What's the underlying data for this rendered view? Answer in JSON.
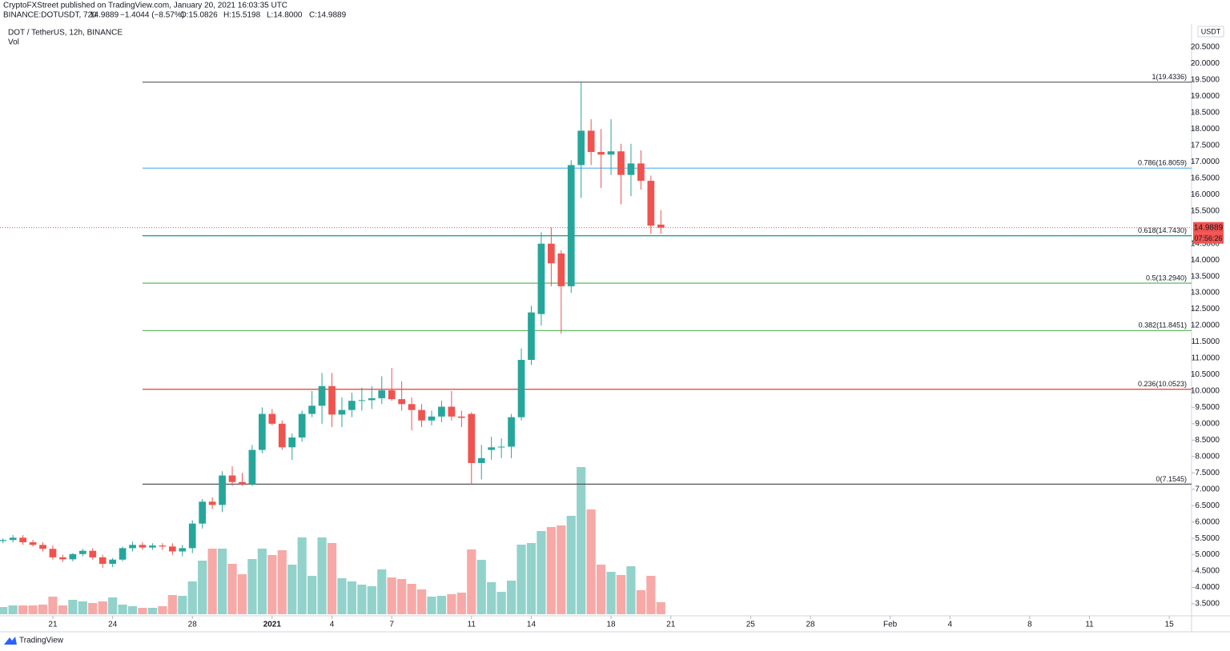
{
  "header": {
    "publisher": "CryptoFXStreet published on TradingView.com, January 20, 2021 16:03:35 UTC",
    "symbol": "BINANCE:DOTUSDT, 720",
    "last": "14.9889",
    "change": "−1.4044 (−8.57%)",
    "open": "O:15.0826",
    "high": "H:15.5198",
    "low": "L:14.8000",
    "close": "C:14.9889"
  },
  "footer": {
    "brand": "TradingView"
  },
  "chart_data": {
    "type": "candlestick",
    "title": "DOT / TetherUS, 12h, BINANCE",
    "volume_label": "Vol",
    "unit": "USDT",
    "up_color": "#26a69a",
    "down_color": "#ef5350",
    "volume_up_color": "#92d2cb",
    "volume_down_color": "#f7a9a7",
    "open": [
      5.42,
      5.45,
      5.52,
      5.38,
      5.3,
      5.18,
      4.92,
      4.86,
      5.02,
      5.12,
      4.92,
      4.72,
      4.85,
      5.2,
      5.3,
      5.22,
      5.28,
      5.25,
      5.1,
      5.2,
      5.95,
      6.62,
      6.52,
      7.42,
      7.22,
      7.15,
      8.2,
      9.3,
      9.0,
      8.28,
      8.58,
      9.3,
      9.55,
      10.15,
      9.28,
      9.42,
      9.7,
      9.72,
      9.78,
      10.02,
      9.75,
      9.6,
      9.42,
      9.1,
      9.22,
      9.52,
      9.22,
      9.3,
      7.8,
      8.2,
      8.28,
      8.3,
      9.2,
      10.95,
      12.35,
      14.5,
      14.2,
      13.2,
      16.9,
      17.95,
      17.3,
      17.22,
      17.32,
      16.6,
      16.95,
      16.42,
      15.0826
    ],
    "high": [
      5.5,
      5.6,
      5.6,
      5.45,
      5.38,
      5.28,
      5.0,
      5.05,
      5.18,
      5.2,
      5.0,
      4.9,
      5.25,
      5.4,
      5.38,
      5.35,
      5.35,
      5.35,
      5.3,
      6.05,
      6.7,
      6.75,
      7.55,
      7.7,
      7.5,
      8.35,
      9.5,
      9.45,
      9.1,
      8.7,
      9.4,
      10.0,
      10.55,
      10.55,
      9.8,
      9.95,
      10.1,
      10.15,
      10.45,
      10.7,
      10.3,
      9.8,
      9.6,
      9.4,
      9.7,
      10.0,
      9.4,
      9.35,
      8.35,
      8.6,
      8.55,
      9.3,
      11.3,
      12.6,
      14.85,
      15.0,
      14.3,
      17.05,
      19.4336,
      18.3,
      18.0,
      18.3,
      17.55,
      17.55,
      17.35,
      16.58,
      15.5198
    ],
    "low": [
      5.35,
      5.38,
      5.3,
      5.25,
      5.1,
      4.85,
      4.78,
      4.8,
      4.95,
      4.85,
      4.6,
      4.62,
      4.8,
      5.1,
      5.15,
      5.15,
      5.15,
      5.0,
      4.95,
      5.05,
      5.8,
      6.4,
      6.3,
      7.1,
      7.1,
      7.1,
      8.1,
      8.95,
      8.2,
      7.9,
      8.45,
      9.2,
      9.0,
      8.9,
      8.9,
      9.2,
      9.4,
      9.45,
      9.6,
      9.7,
      9.4,
      8.8,
      8.9,
      8.95,
      9.05,
      9.1,
      8.9,
      7.15,
      7.3,
      7.9,
      7.95,
      7.95,
      9.1,
      10.8,
      12.0,
      13.2,
      11.75,
      13.0,
      15.9,
      16.9,
      16.2,
      16.6,
      15.7,
      15.95,
      16.15,
      14.8,
      14.8
    ],
    "close": [
      5.45,
      5.52,
      5.38,
      5.3,
      5.18,
      4.92,
      4.86,
      5.02,
      5.12,
      4.92,
      4.72,
      4.85,
      5.2,
      5.3,
      5.22,
      5.28,
      5.25,
      5.1,
      5.2,
      5.95,
      6.62,
      6.52,
      7.42,
      7.22,
      7.15,
      8.2,
      9.3,
      9.0,
      8.28,
      8.58,
      9.3,
      9.55,
      10.15,
      9.28,
      9.42,
      9.7,
      9.72,
      9.78,
      10.02,
      9.75,
      9.6,
      9.42,
      9.1,
      9.22,
      9.52,
      9.22,
      9.18,
      7.8,
      7.95,
      8.28,
      8.3,
      9.2,
      10.95,
      12.4,
      14.5,
      13.9,
      13.2,
      16.9,
      17.95,
      17.3,
      17.22,
      17.32,
      16.6,
      16.95,
      16.42,
      15.05,
      14.9889
    ],
    "volume": [
      9,
      11,
      11,
      11,
      12,
      22,
      11,
      18,
      16,
      14,
      16,
      21,
      12,
      10,
      8,
      8,
      10,
      24,
      23,
      41,
      67,
      82,
      82,
      63,
      50,
      69,
      82,
      74,
      80,
      62,
      96,
      48,
      96,
      89,
      45,
      41,
      37,
      35,
      56,
      46,
      44,
      38,
      31,
      22,
      23,
      25,
      27,
      81,
      68,
      40,
      28,
      42,
      87,
      89,
      104,
      109,
      111,
      123,
      184,
      131,
      62,
      53,
      49,
      60,
      30,
      48,
      15
    ],
    "ylim": [
      3.134,
      21.209
    ],
    "yticks": [
      {
        "value": 3.5,
        "label": "3.5000"
      },
      {
        "value": 4,
        "label": "4.0000"
      },
      {
        "value": 4.5,
        "label": "4.5000"
      },
      {
        "value": 5,
        "label": "5.0000"
      },
      {
        "value": 5.5,
        "label": "5.5000"
      },
      {
        "value": 6,
        "label": "6.0000"
      },
      {
        "value": 6.5,
        "label": "6.5000"
      },
      {
        "value": 7,
        "label": "7.0000"
      },
      {
        "value": 7.5,
        "label": "7.5000"
      },
      {
        "value": 8,
        "label": "8.0000"
      },
      {
        "value": 8.5,
        "label": "8.5000"
      },
      {
        "value": 9,
        "label": "9.0000"
      },
      {
        "value": 9.5,
        "label": "9.5000"
      },
      {
        "value": 10,
        "label": "10.0000"
      },
      {
        "value": 10.5,
        "label": "10.5000"
      },
      {
        "value": 11,
        "label": "11.0000"
      },
      {
        "value": 11.5,
        "label": "11.5000"
      },
      {
        "value": 12,
        "label": "12.0000"
      },
      {
        "value": 12.5,
        "label": "12.5000"
      },
      {
        "value": 13,
        "label": "13.0000"
      },
      {
        "value": 13.5,
        "label": "13.5000"
      },
      {
        "value": 14,
        "label": "14.0000"
      },
      {
        "value": 14.5,
        "label": "14.5000"
      },
      {
        "value": 15.5,
        "label": "15.5000"
      },
      {
        "value": 16,
        "label": "16.0000"
      },
      {
        "value": 16.5,
        "label": "16.5000"
      },
      {
        "value": 17,
        "label": "17.0000"
      },
      {
        "value": 17.5,
        "label": "17.5000"
      },
      {
        "value": 18,
        "label": "18.0000"
      },
      {
        "value": 18.5,
        "label": "18.5000"
      },
      {
        "value": 19,
        "label": "19.0000"
      },
      {
        "value": 19.5,
        "label": "19.5000"
      },
      {
        "value": 20,
        "label": "20.0000"
      },
      {
        "value": 20.5,
        "label": "20.5000"
      }
    ],
    "xlim": [
      -0.3,
      119.4
    ],
    "xticks": [
      {
        "value": 5,
        "label": "21"
      },
      {
        "value": 11,
        "label": "24"
      },
      {
        "value": 19,
        "label": "28"
      },
      {
        "value": 27,
        "label": "2021"
      },
      {
        "value": 33,
        "label": "4"
      },
      {
        "value": 39,
        "label": "7"
      },
      {
        "value": 47,
        "label": "11"
      },
      {
        "value": 53,
        "label": "14"
      },
      {
        "value": 61,
        "label": "18"
      },
      {
        "value": 67,
        "label": "21"
      },
      {
        "value": 75,
        "label": "25"
      },
      {
        "value": 81,
        "label": "28"
      },
      {
        "value": 89,
        "label": "Feb"
      },
      {
        "value": 95,
        "label": "4"
      },
      {
        "value": 103,
        "label": "8"
      },
      {
        "value": 109,
        "label": "11"
      },
      {
        "value": 117,
        "label": "15"
      }
    ],
    "fib": {
      "start": 14,
      "levels": [
        {
          "label": "1(19.4336)",
          "value": 19.4336,
          "color": "#555555"
        },
        {
          "label": "0.786(16.8059)",
          "value": 16.8059,
          "color": "#64b5f6"
        },
        {
          "label": "0.618(14.7430)",
          "value": 14.743,
          "color": "#089981"
        },
        {
          "label": "0.5(13.2940)",
          "value": 13.294,
          "color": "#4caf50"
        },
        {
          "label": "0.382(11.8451)",
          "value": 11.8451,
          "color": "#66bb6a"
        },
        {
          "label": "0.236(10.0523)",
          "value": 10.0523,
          "color": "#e53935"
        },
        {
          "label": "0(7.1545)",
          "value": 7.1545,
          "color": "#555555"
        }
      ]
    },
    "last_price": 14.9889,
    "countdown": "07:56:26"
  }
}
